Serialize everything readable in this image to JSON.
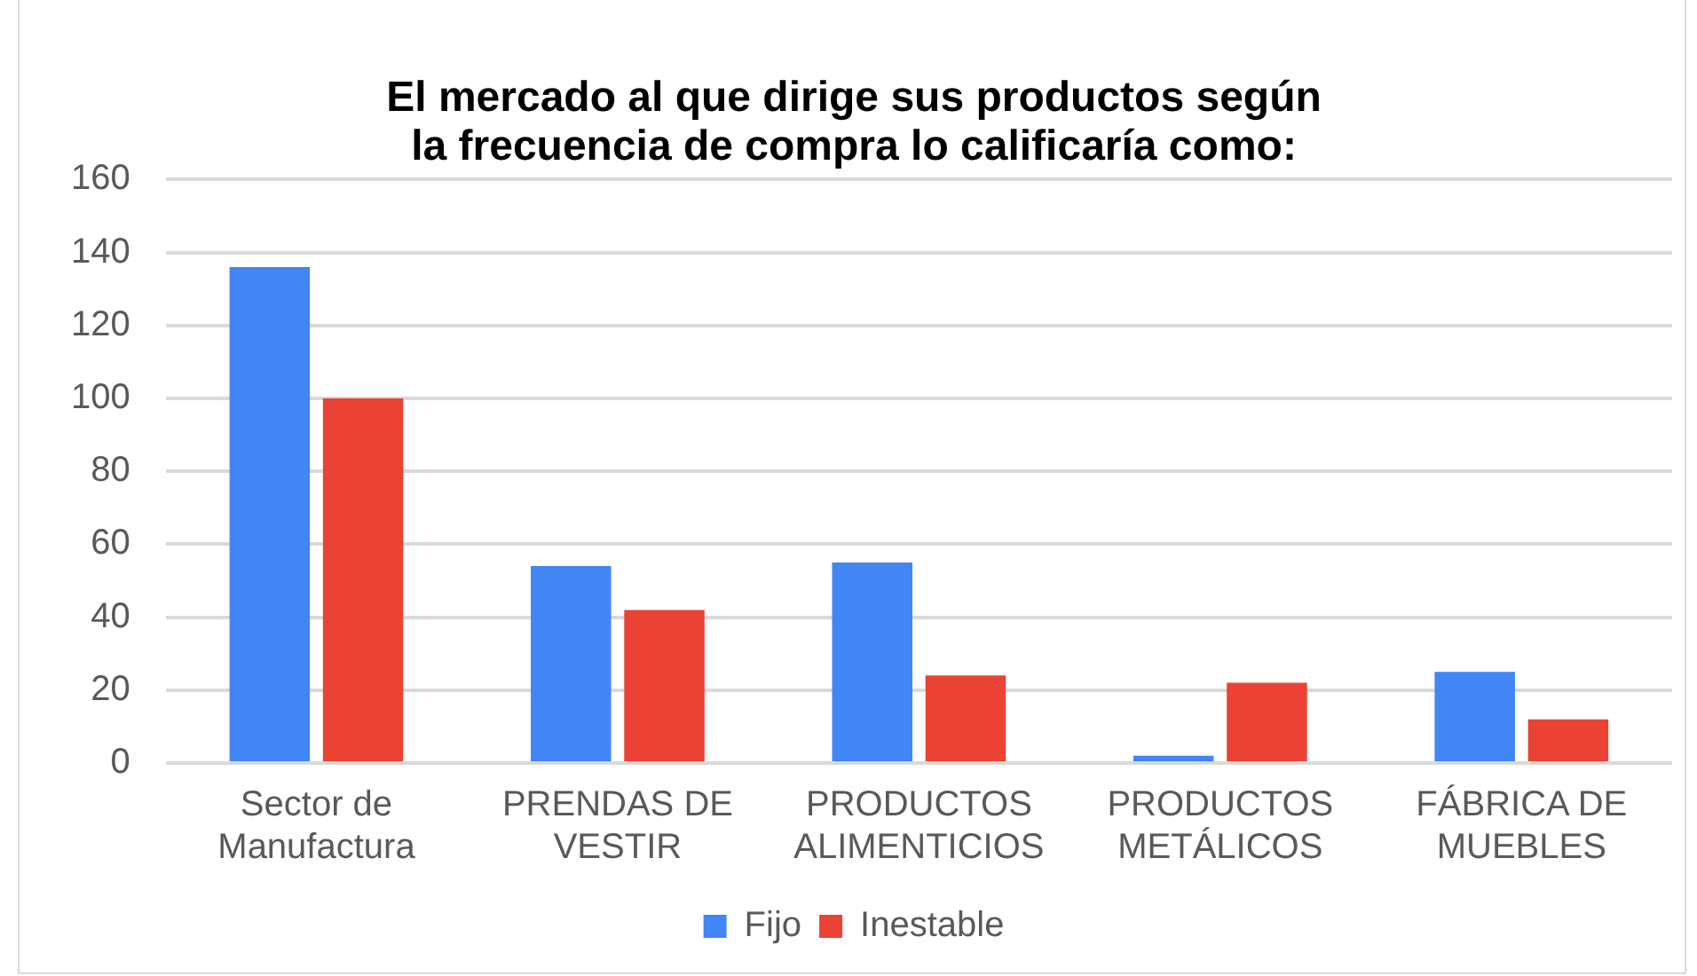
{
  "chart_data": {
    "type": "bar",
    "title": "El mercado al que dirige sus productos según la frecuencia de compra lo calificaría como:",
    "categories": [
      "Sector de Manufactura",
      "PRENDAS DE VESTIR",
      "PRODUCTOS ALIMENTICIOS",
      "PRODUCTOS METÁLICOS",
      "FÁBRICA DE MUEBLES"
    ],
    "series": [
      {
        "name": "Fijo",
        "color": "#4285f4",
        "values": [
          136,
          54,
          55,
          2,
          25
        ]
      },
      {
        "name": "Inestable",
        "color": "#ea4335",
        "values": [
          100,
          42,
          24,
          22,
          12
        ]
      }
    ],
    "ylim": [
      0,
      160
    ],
    "yticks": [
      0,
      20,
      40,
      60,
      80,
      100,
      120,
      140,
      160
    ],
    "grid": "y",
    "legend": "bottom"
  }
}
